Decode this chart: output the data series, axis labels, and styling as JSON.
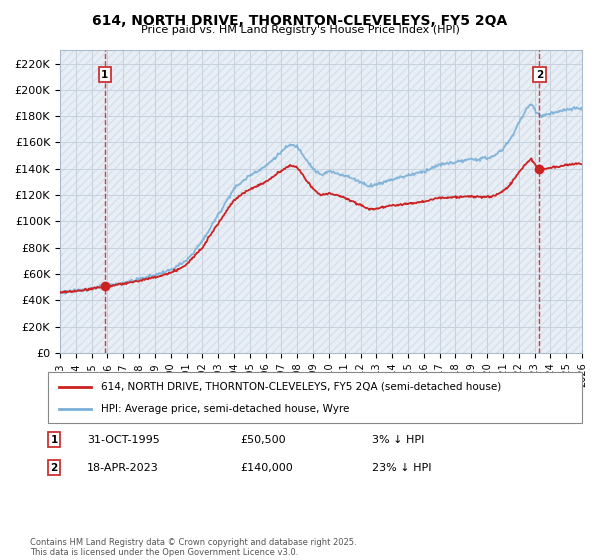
{
  "title": "614, NORTH DRIVE, THORNTON-CLEVELEYS, FY5 2QA",
  "subtitle": "Price paid vs. HM Land Registry's House Price Index (HPI)",
  "legend_line1": "614, NORTH DRIVE, THORNTON-CLEVELEYS, FY5 2QA (semi-detached house)",
  "legend_line2": "HPI: Average price, semi-detached house, Wyre",
  "transaction1_date": "31-OCT-1995",
  "transaction1_price": 50500,
  "transaction1_note": "3% ↓ HPI",
  "transaction2_date": "18-APR-2023",
  "transaction2_price": 140000,
  "transaction2_note": "23% ↓ HPI",
  "footer": "Contains HM Land Registry data © Crown copyright and database right 2025.\nThis data is licensed under the Open Government Licence v3.0.",
  "xmin": 1993,
  "xmax": 2026,
  "ymin": 0,
  "ymax": 230000,
  "yticks": [
    0,
    20000,
    40000,
    60000,
    80000,
    100000,
    120000,
    140000,
    160000,
    180000,
    200000,
    220000
  ],
  "bg_color": "#e8eef5",
  "hatch_color": "#c8d4e0",
  "grid_color": "#c0ccd8",
  "hpi_color": "#7ab0d8",
  "price_color": "#cc2222",
  "marker1_x": 1995.83,
  "marker2_x": 2023.3
}
